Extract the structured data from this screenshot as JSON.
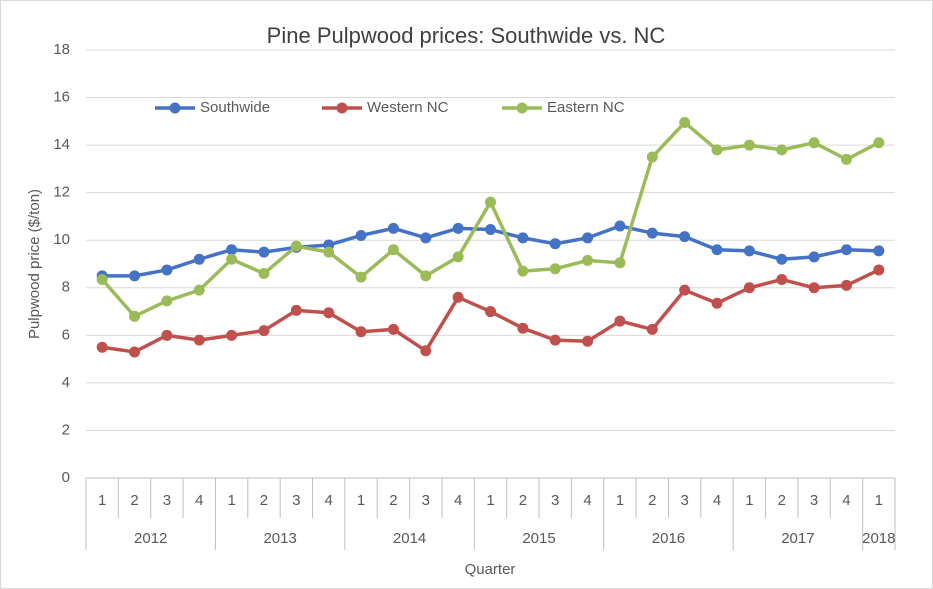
{
  "chart_data": {
    "type": "line",
    "title": "Pine Pulpwood prices: Southwide vs. NC",
    "x_label": "Quarter",
    "y_label": "Pulpwood price ($/ton)",
    "categories": [
      "1",
      "2",
      "3",
      "4",
      "1",
      "2",
      "3",
      "4",
      "1",
      "2",
      "3",
      "4",
      "1",
      "2",
      "3",
      "4",
      "1",
      "2",
      "3",
      "4",
      "1",
      "2",
      "3",
      "4",
      "1"
    ],
    "category_groups": [
      "2012",
      "2013",
      "2014",
      "2015",
      "2016",
      "2017",
      "2018"
    ],
    "series": [
      {
        "name": "Southwide",
        "color": "#4472c4",
        "values": [
          8.5,
          8.5,
          8.75,
          9.2,
          9.6,
          9.5,
          9.7,
          9.8,
          10.2,
          10.5,
          10.1,
          10.5,
          10.45,
          10.1,
          9.85,
          10.1,
          10.6,
          10.3,
          10.15,
          9.6,
          9.55,
          9.2,
          9.3,
          9.6,
          9.55
        ]
      },
      {
        "name": "Western NC",
        "color": "#c0504d",
        "values": [
          5.5,
          5.3,
          6.0,
          5.8,
          6.0,
          6.2,
          7.05,
          6.95,
          6.15,
          6.25,
          5.35,
          7.6,
          7.0,
          6.3,
          5.8,
          5.75,
          6.6,
          6.25,
          7.9,
          7.35,
          8.0,
          8.35,
          8.0,
          8.1,
          8.75
        ]
      },
      {
        "name": "Eastern NC",
        "color": "#9bbb59",
        "values": [
          8.35,
          6.8,
          7.45,
          7.9,
          9.2,
          8.6,
          9.75,
          9.5,
          8.45,
          9.6,
          8.5,
          9.3,
          11.6,
          8.7,
          8.8,
          9.15,
          9.05,
          13.5,
          14.95,
          13.8,
          14.0,
          13.8,
          14.1,
          13.4,
          14.1
        ]
      }
    ],
    "ylim": [
      0,
      18
    ],
    "yticks": [
      0,
      2,
      4,
      6,
      8,
      10,
      12,
      14,
      16,
      18
    ],
    "grid": true,
    "legend": "top-left"
  }
}
